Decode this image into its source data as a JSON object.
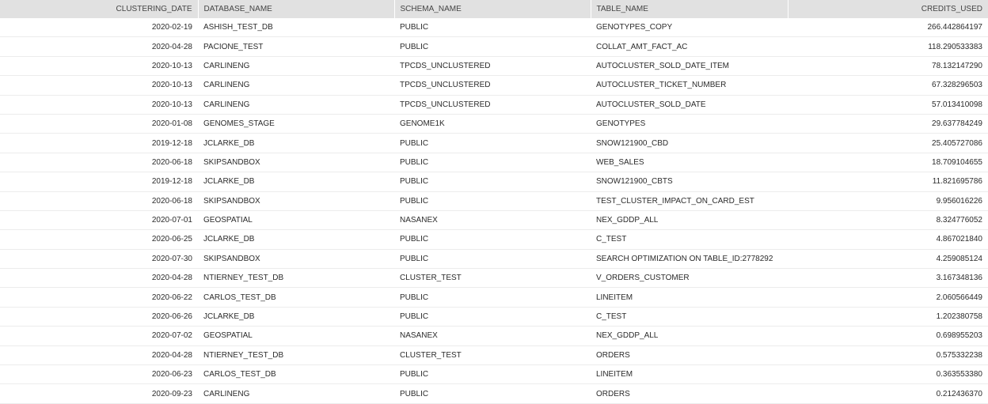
{
  "columns": [
    "CLUSTERING_DATE",
    "DATABASE_NAME",
    "SCHEMA_NAME",
    "TABLE_NAME",
    "CREDITS_USED"
  ],
  "rows": [
    [
      "2020-02-19",
      "ASHISH_TEST_DB",
      "PUBLIC",
      "GENOTYPES_COPY",
      "266.442864197"
    ],
    [
      "2020-04-28",
      "PACIONE_TEST",
      "PUBLIC",
      "COLLAT_AMT_FACT_AC",
      "118.290533383"
    ],
    [
      "2020-10-13",
      "CARLINENG",
      "TPCDS_UNCLUSTERED",
      "AUTOCLUSTER_SOLD_DATE_ITEM",
      "78.132147290"
    ],
    [
      "2020-10-13",
      "CARLINENG",
      "TPCDS_UNCLUSTERED",
      "AUTOCLUSTER_TICKET_NUMBER",
      "67.328296503"
    ],
    [
      "2020-10-13",
      "CARLINENG",
      "TPCDS_UNCLUSTERED",
      "AUTOCLUSTER_SOLD_DATE",
      "57.013410098"
    ],
    [
      "2020-01-08",
      "GENOMES_STAGE",
      "GENOME1K",
      "GENOTYPES",
      "29.637784249"
    ],
    [
      "2019-12-18",
      "JCLARKE_DB",
      "PUBLIC",
      "SNOW121900_CBD",
      "25.405727086"
    ],
    [
      "2020-06-18",
      "SKIPSANDBOX",
      "PUBLIC",
      "WEB_SALES",
      "18.709104655"
    ],
    [
      "2019-12-18",
      "JCLARKE_DB",
      "PUBLIC",
      "SNOW121900_CBTS",
      "11.821695786"
    ],
    [
      "2020-06-18",
      "SKIPSANDBOX",
      "PUBLIC",
      "TEST_CLUSTER_IMPACT_ON_CARD_EST",
      "9.956016226"
    ],
    [
      "2020-07-01",
      "GEOSPATIAL",
      "NASANEX",
      "NEX_GDDP_ALL",
      "8.324776052"
    ],
    [
      "2020-06-25",
      "JCLARKE_DB",
      "PUBLIC",
      "C_TEST",
      "4.867021840"
    ],
    [
      "2020-07-30",
      "SKIPSANDBOX",
      "PUBLIC",
      "SEARCH OPTIMIZATION ON TABLE_ID:2778292",
      "4.259085124"
    ],
    [
      "2020-04-28",
      "NTIERNEY_TEST_DB",
      "CLUSTER_TEST",
      "V_ORDERS_CUSTOMER",
      "3.167348136"
    ],
    [
      "2020-06-22",
      "CARLOS_TEST_DB",
      "PUBLIC",
      "LINEITEM",
      "2.060566449"
    ],
    [
      "2020-06-26",
      "JCLARKE_DB",
      "PUBLIC",
      "C_TEST",
      "1.202380758"
    ],
    [
      "2020-07-02",
      "GEOSPATIAL",
      "NASANEX",
      "NEX_GDDP_ALL",
      "0.698955203"
    ],
    [
      "2020-04-28",
      "NTIERNEY_TEST_DB",
      "CLUSTER_TEST",
      "ORDERS",
      "0.575332238"
    ],
    [
      "2020-06-23",
      "CARLOS_TEST_DB",
      "PUBLIC",
      "LINEITEM",
      "0.363553380"
    ],
    [
      "2020-09-23",
      "CARLINENG",
      "PUBLIC",
      "ORDERS",
      "0.212436370"
    ]
  ]
}
